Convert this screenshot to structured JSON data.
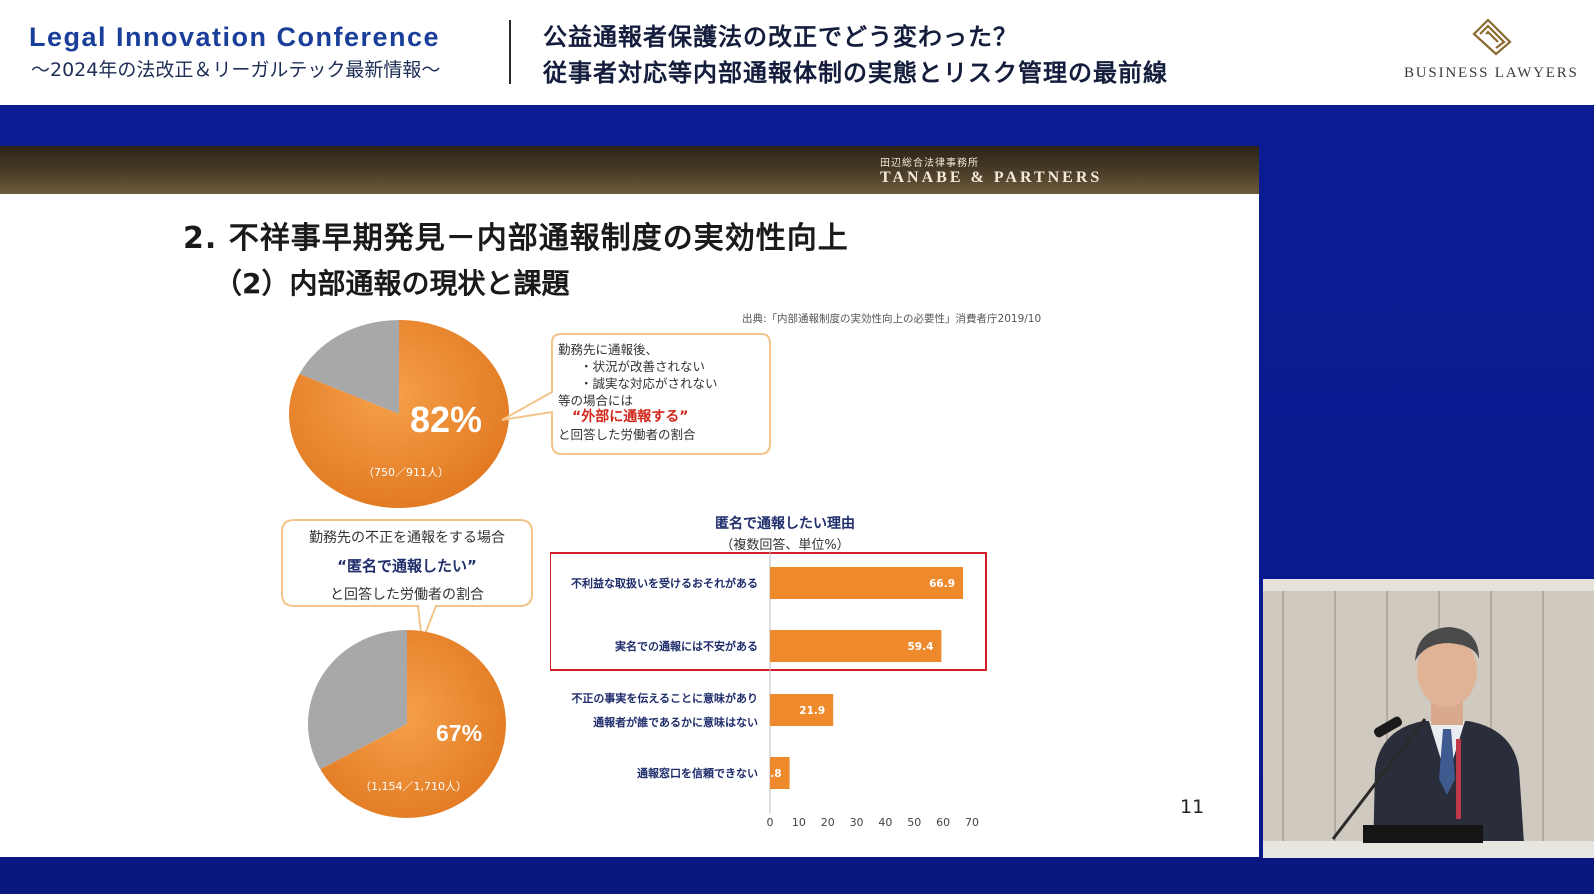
{
  "header": {
    "conference_title": "Legal Innovation Conference",
    "conference_subtitle": "〜2024年の法改正＆リーガルテック最新情報〜",
    "talk_title_line1": "公益通報者保護法の改正でどう変わった？",
    "talk_title_line2": "従事者対応等内部通報体制の実態とリスク管理の最前線",
    "logo_text": "BUSINESS LAWYERS",
    "logo_icon": "business-lawyers-logo"
  },
  "slide": {
    "firm_name_jp": "田辺総合法律事務所",
    "firm_name_en": "TANABE & PARTNERS",
    "heading": "2. 不祥事早期発見－内部通報制度の実効性向上",
    "subheading": "（2）内部通報の現状と課題",
    "source": "出典:「内部通報制度の実効性向上の必要性」消費者庁2019/10",
    "page_number": "11",
    "pie1": {
      "percent_label": "82%",
      "count_label": "（750／911人）",
      "value": 82,
      "colors": {
        "main": "#ef8a2c",
        "rest": "#a8a8a8"
      }
    },
    "callout1": {
      "line1": "勤務先に通報後、",
      "line2": "・状況が改善されない",
      "line3": "・誠実な対応がされない",
      "line4": "等の場合には",
      "emphasis": "“外部に通報する”",
      "line5": "と回答した労働者の割合"
    },
    "pie2": {
      "percent_label": "67%",
      "count_label": "（1,154／1,710人）",
      "value": 67,
      "colors": {
        "main": "#ef8a2c",
        "rest": "#a8a8a8"
      }
    },
    "callout2": {
      "line1": "勤務先の不正を通報をする場合",
      "emphasis": "“匿名で通報したい”",
      "line3": "と回答した労働者の割合"
    }
  },
  "chart_data": {
    "type": "bar",
    "orientation": "horizontal",
    "title": "匿名で通報したい理由",
    "subtitle": "（複数回答、単位%）",
    "categories": [
      [
        "不利益な取扱いを受けるおそれがある"
      ],
      [
        "実名での通報には不安がある"
      ],
      [
        "不正の事実を伝えることに意味があり",
        "通報者が誰であるかに意味はない"
      ],
      [
        "通報窓口を信頼できない"
      ]
    ],
    "values": [
      66.9,
      59.4,
      21.9,
      6.8
    ],
    "value_labels": [
      "66.9",
      "59.4",
      "21.9",
      "6.8"
    ],
    "xlim": [
      0,
      70
    ],
    "xticks": [
      "0",
      "10",
      "20",
      "30",
      "40",
      "50",
      "60",
      "70"
    ],
    "highlight_box": "first two bars",
    "bar_color": "#ef8a2c",
    "highlight_color": "#d11f2a"
  }
}
